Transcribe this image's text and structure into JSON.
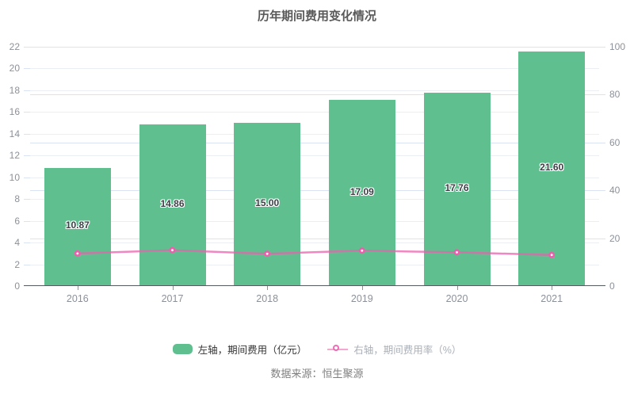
{
  "title": "历年期间费用变化情况",
  "source": "数据来源：恒生聚源",
  "legend": {
    "bar_label": "左轴，期间费用（亿元）",
    "line_label": "右轴，期间费用率（%）"
  },
  "colors": {
    "bar": "#5fbf8f",
    "line": "#ec5fad",
    "title_text": "#595959",
    "axis_tick_text": "#8c9199",
    "grid_left": "#ebeef4",
    "grid_right": "#d9e3f3",
    "axis_line": "#555a60",
    "bar_value_text": "#3a3f45",
    "legend_text_primary": "#333333",
    "legend_text_secondary": "#aab0b8",
    "source_text": "#7f7f7f"
  },
  "chart_data": {
    "type": "bar",
    "title": "历年期间费用变化情况",
    "categories": [
      "2016",
      "2017",
      "2018",
      "2019",
      "2020",
      "2021"
    ],
    "series": [
      {
        "name": "左轴，期间费用（亿元）",
        "type": "bar",
        "axis": "left",
        "values": [
          10.87,
          14.86,
          15.0,
          17.09,
          17.76,
          21.6
        ]
      },
      {
        "name": "右轴，期间费用率（%）",
        "type": "line",
        "axis": "right",
        "values": [
          13.6,
          15.0,
          13.5,
          14.8,
          14.1,
          13.0
        ]
      }
    ],
    "left_axis": {
      "min": 0,
      "max": 22,
      "ticks": [
        0,
        2,
        4,
        6,
        8,
        10,
        12,
        14,
        16,
        18,
        20,
        22
      ]
    },
    "right_axis": {
      "min": 0,
      "max": 100,
      "ticks": [
        0,
        20,
        40,
        60,
        80,
        100
      ]
    },
    "grid": true,
    "legend_position": "bottom",
    "bar_label_decimals": 2
  }
}
